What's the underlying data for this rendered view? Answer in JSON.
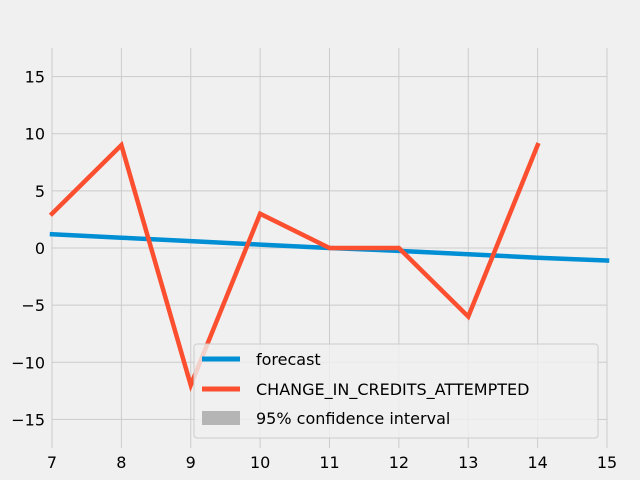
{
  "chart_data": {
    "type": "line",
    "title": "",
    "xlabel": "",
    "ylabel": "",
    "xlim": [
      7,
      15
    ],
    "ylim": [
      -17.5,
      17.5
    ],
    "xticks": [
      7,
      8,
      9,
      10,
      11,
      12,
      13,
      14,
      15
    ],
    "yticks": [
      -15,
      -10,
      -5,
      0,
      5,
      10,
      15
    ],
    "grid": true,
    "legend_position": "lower-right",
    "series": [
      {
        "name": "forecast",
        "color": "#008fd5",
        "x": [
          7,
          8,
          9,
          10,
          11,
          12,
          13,
          14,
          15
        ],
        "y": [
          1.2,
          0.9,
          0.6,
          0.3,
          0.0,
          -0.25,
          -0.55,
          -0.85,
          -1.1
        ]
      },
      {
        "name": "CHANGE_IN_CREDITS_ATTEMPTED",
        "color": "#fc4f30",
        "x": [
          7,
          8,
          9,
          10,
          11,
          12,
          13,
          14
        ],
        "y": [
          3,
          9,
          -12,
          3,
          0,
          0,
          -6,
          9
        ]
      }
    ],
    "confidence_interval": {
      "name": "95% confidence interval",
      "color": "#b5b5b5"
    }
  }
}
